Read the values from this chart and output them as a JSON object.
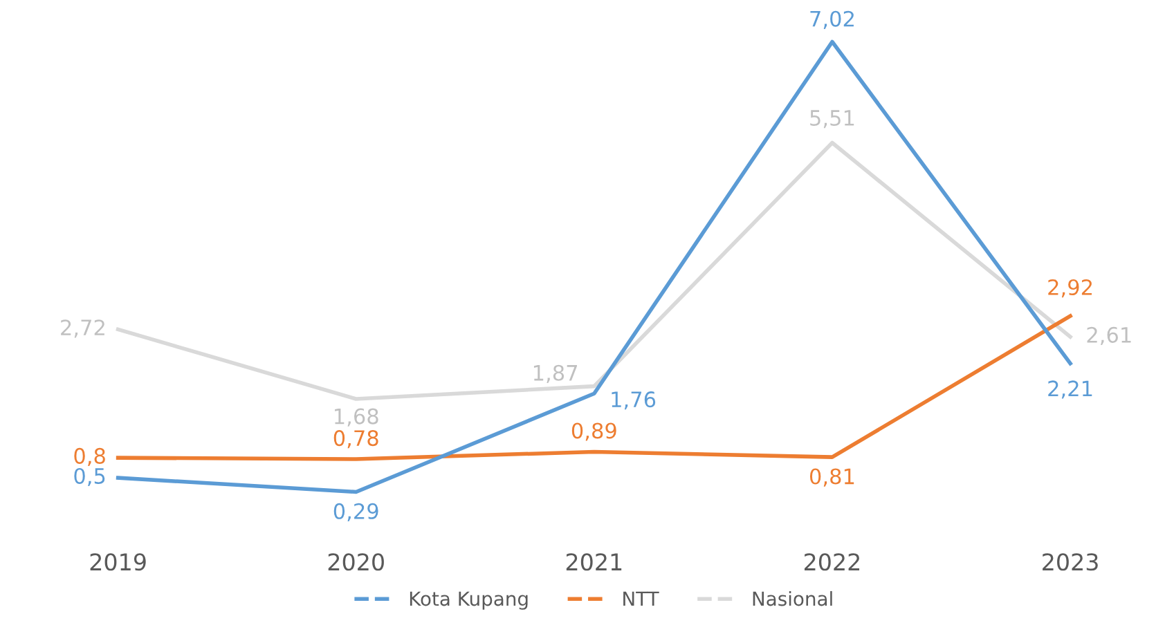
{
  "chart_data": {
    "type": "line",
    "categories": [
      "2019",
      "2020",
      "2021",
      "2022",
      "2023"
    ],
    "series": [
      {
        "name": "Kota Kupang",
        "color": "#5b9bd5",
        "values": [
          0.5,
          0.29,
          1.76,
          7.02,
          2.21
        ],
        "value_labels": [
          "0,5",
          "0,29",
          "1,76",
          "7,02",
          "2,21"
        ]
      },
      {
        "name": "NTT",
        "color": "#ed7d31",
        "values": [
          0.8,
          0.78,
          0.89,
          0.81,
          2.92
        ],
        "value_labels": [
          "0,8",
          "0,78",
          "0,89",
          "0,81",
          "2,92"
        ]
      },
      {
        "name": "Nasional",
        "color": "#d9d9d9",
        "values": [
          2.72,
          1.68,
          1.87,
          5.51,
          2.61
        ],
        "value_labels": [
          "2,72",
          "1,68",
          "1,87",
          "5,51",
          "2,61"
        ]
      }
    ],
    "legend": "bottom",
    "grid": false,
    "line_style": "solid"
  }
}
